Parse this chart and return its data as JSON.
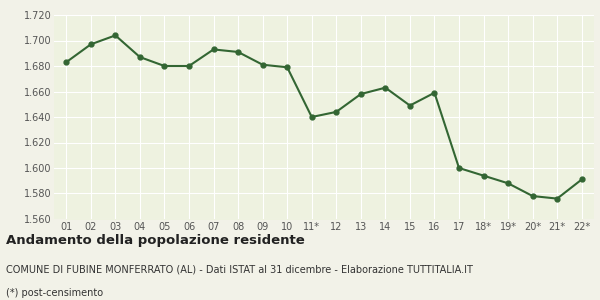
{
  "x_labels": [
    "01",
    "02",
    "03",
    "04",
    "05",
    "06",
    "07",
    "08",
    "09",
    "10",
    "11*",
    "12",
    "13",
    "14",
    "15",
    "16",
    "17",
    "18*",
    "19*",
    "20*",
    "21*",
    "22*"
  ],
  "y_values": [
    1683,
    1697,
    1704,
    1687,
    1680,
    1680,
    1693,
    1691,
    1681,
    1679,
    1640,
    1644,
    1658,
    1663,
    1649,
    1659,
    1600,
    1594,
    1588,
    1578,
    1576,
    1591
  ],
  "ylim": [
    1560,
    1720
  ],
  "yticks": [
    1560,
    1580,
    1600,
    1620,
    1640,
    1660,
    1680,
    1700,
    1720
  ],
  "line_color": "#336633",
  "fill_color": "#eef2e0",
  "marker_color": "#336633",
  "bg_color": "#f2f2e8",
  "plot_bg_color": "#eef2e0",
  "grid_color": "#ffffff",
  "title": "Andamento della popolazione residente",
  "subtitle": "COMUNE DI FUBINE MONFERRATO (AL) - Dati ISTAT al 31 dicembre - Elaborazione TUTTITALIA.IT",
  "footnote": "(*) post-censimento",
  "title_fontsize": 9.5,
  "subtitle_fontsize": 7,
  "footnote_fontsize": 7,
  "tick_fontsize": 7,
  "line_width": 1.5,
  "marker_size": 3.5
}
